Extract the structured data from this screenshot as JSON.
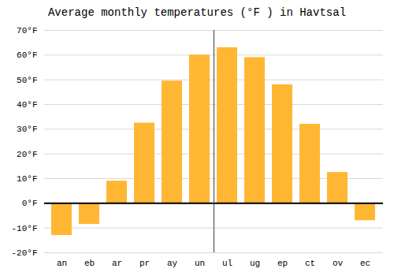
{
  "chart_data": {
    "type": "bar",
    "title": "Average monthly temperatures (°F ) in Havtsal",
    "categories": [
      "an",
      "eb",
      "ar",
      "pr",
      "ay",
      "un",
      "ul",
      "ug",
      "ep",
      "ct",
      "ov",
      "ec"
    ],
    "values": [
      -13,
      -8.5,
      9,
      32.5,
      49.5,
      60,
      63,
      59,
      48,
      32,
      12.5,
      -7
    ],
    "color": "#FFB733",
    "ylim": [
      -20,
      70
    ],
    "yticks": [
      {
        "value": -20,
        "label": "-20°F"
      },
      {
        "value": -10,
        "label": "-10°F"
      },
      {
        "value": 0,
        "label": "0°F"
      },
      {
        "value": 10,
        "label": "10°F"
      },
      {
        "value": 20,
        "label": "20°F"
      },
      {
        "value": 30,
        "label": "30°F"
      },
      {
        "value": 40,
        "label": "40°F"
      },
      {
        "value": 50,
        "label": "50°F"
      },
      {
        "value": 60,
        "label": "60°F"
      },
      {
        "value": 70,
        "label": "70°F"
      }
    ],
    "grid": true
  }
}
